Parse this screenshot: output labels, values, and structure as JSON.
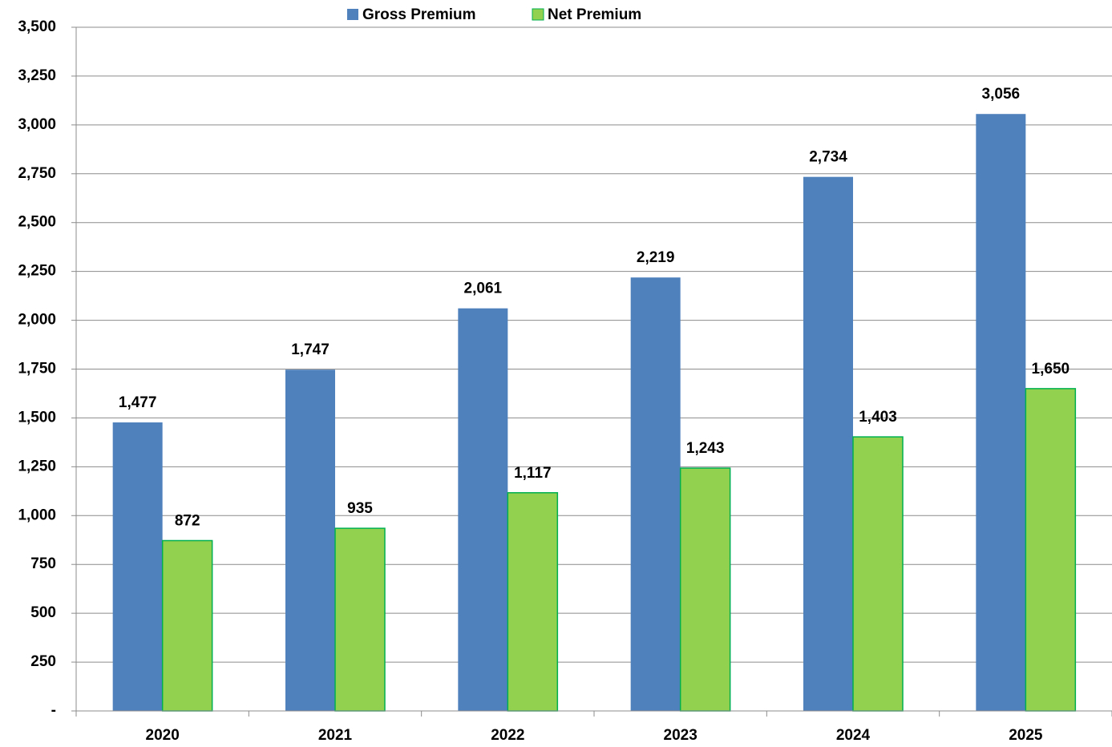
{
  "chart_data": {
    "type": "bar",
    "categories": [
      "2020",
      "2021",
      "2022",
      "2023",
      "2024",
      "2025"
    ],
    "series": [
      {
        "name": "Gross Premium",
        "color": "#4f81bd",
        "values": [
          1477,
          1747,
          2061,
          2219,
          2734,
          3056
        ],
        "value_labels": [
          "1,477",
          "1,747",
          "2,061",
          "2,219",
          "2,734",
          "3,056"
        ]
      },
      {
        "name": "Net Premium",
        "color": "#92d050",
        "values": [
          872,
          935,
          1117,
          1243,
          1403,
          1650
        ],
        "value_labels": [
          "872",
          "935",
          "1,117",
          "1,243",
          "1,403",
          "1,650"
        ]
      }
    ],
    "ylim": [
      0,
      3500
    ],
    "yticks": [
      {
        "value": 0,
        "label": "-"
      },
      250,
      500,
      750,
      {
        "value": 1000,
        "label": "1,000"
      },
      {
        "value": 1250,
        "label": "1,250"
      },
      {
        "value": 1500,
        "label": "1,500"
      },
      {
        "value": 1750,
        "label": "1,750"
      },
      {
        "value": 2000,
        "label": "2,000"
      },
      {
        "value": 2250,
        "label": "2,250"
      },
      {
        "value": 2500,
        "label": "2,500"
      },
      {
        "value": 2750,
        "label": "2,750"
      },
      {
        "value": 3000,
        "label": "3,000"
      },
      {
        "value": 3250,
        "label": "3,250"
      },
      {
        "value": 3500,
        "label": "3,500"
      }
    ],
    "grid": true,
    "legend": "top"
  }
}
